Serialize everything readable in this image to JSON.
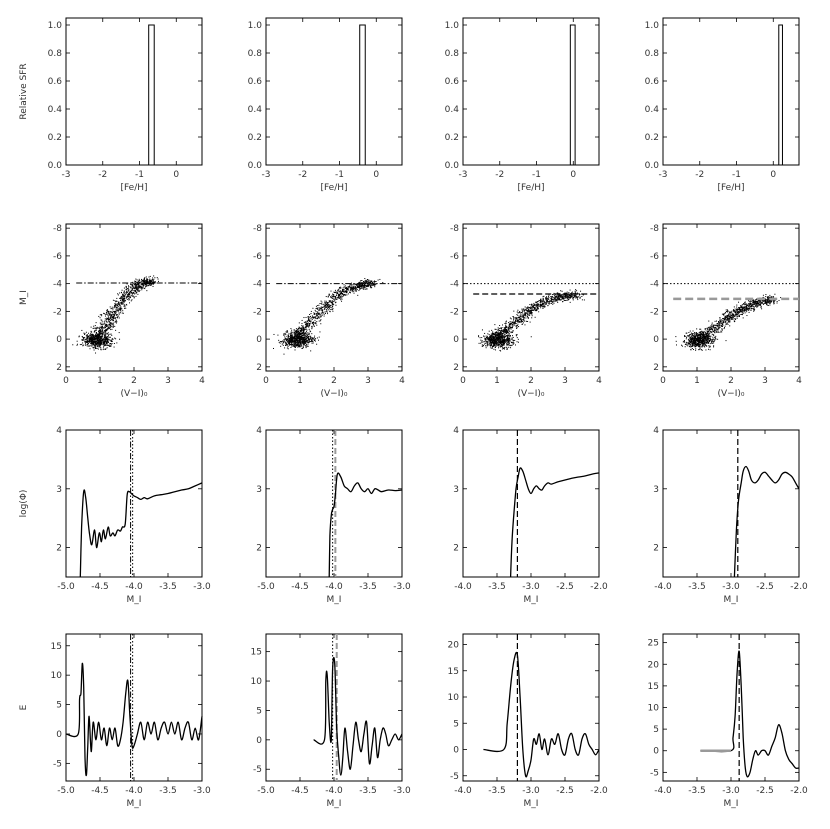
{
  "chart_data": [
    {
      "panel": "sfr-1",
      "type": "bar",
      "ylabel": "Relative SFR",
      "xlabel": "[Fe/H]",
      "xlim": [
        -3,
        0.7
      ],
      "ylim": [
        0,
        1.05
      ],
      "xticks": [
        -3,
        -2,
        -1,
        0
      ],
      "yticks": [
        0.0,
        0.2,
        0.4,
        0.6,
        0.8,
        1.0
      ],
      "bar": {
        "x0": -0.75,
        "x1": -0.6,
        "value": 1.0
      }
    },
    {
      "panel": "sfr-2",
      "type": "bar",
      "ylabel": "",
      "xlabel": "[Fe/H]",
      "xlim": [
        -3,
        0.7
      ],
      "ylim": [
        0,
        1.05
      ],
      "xticks": [
        -3,
        -2,
        -1,
        0
      ],
      "yticks": [
        0.0,
        0.2,
        0.4,
        0.6,
        0.8,
        1.0
      ],
      "bar": {
        "x0": -0.45,
        "x1": -0.3,
        "value": 1.0
      }
    },
    {
      "panel": "sfr-3",
      "type": "bar",
      "ylabel": "",
      "xlabel": "[Fe/H]",
      "xlim": [
        -3,
        0.7
      ],
      "ylim": [
        0,
        1.05
      ],
      "xticks": [
        -3,
        -2,
        -1,
        0
      ],
      "yticks": [
        0.0,
        0.2,
        0.4,
        0.6,
        0.8,
        1.0
      ],
      "bar": {
        "x0": -0.08,
        "x1": 0.05,
        "value": 1.0
      }
    },
    {
      "panel": "sfr-4",
      "type": "bar",
      "ylabel": "",
      "xlabel": "[Fe/H]",
      "xlim": [
        -3,
        0.7
      ],
      "ylim": [
        0,
        1.05
      ],
      "xticks": [
        -3,
        -2,
        -1,
        0
      ],
      "yticks": [
        0.0,
        0.2,
        0.4,
        0.6,
        0.8,
        1.0
      ],
      "bar": {
        "x0": 0.15,
        "x1": 0.25,
        "value": 1.0
      }
    },
    {
      "panel": "cmd-1",
      "type": "scatter",
      "ylabel": "M_I",
      "xlabel": "(V−I)₀",
      "xlim": [
        0,
        4
      ],
      "ylim": [
        2.3,
        -8.3
      ],
      "xticks": [
        0,
        1,
        2,
        3,
        4
      ],
      "yticks": [
        2,
        0,
        -2,
        -4,
        -6,
        -8
      ],
      "trgb": [
        -4.05
      ],
      "trgb_style": [
        "dd"
      ],
      "branch": {
        "x": [
          0.6,
          0.9,
          1.1,
          1.3,
          1.5,
          1.7,
          1.9,
          2.1,
          2.3,
          2.5
        ],
        "y": [
          0.2,
          -0.3,
          -0.9,
          -1.6,
          -2.3,
          -3.0,
          -3.5,
          -3.9,
          -4.1,
          -4.2
        ]
      }
    },
    {
      "panel": "cmd-2",
      "type": "scatter",
      "ylabel": "",
      "xlabel": "(V−I)₀",
      "xlim": [
        0,
        4
      ],
      "ylim": [
        2.3,
        -8.3
      ],
      "xticks": [
        0,
        1,
        2,
        3,
        4
      ],
      "yticks": [
        2,
        0,
        -2,
        -4,
        -6,
        -8
      ],
      "trgb": [
        -4.0
      ],
      "trgb_style": [
        "dd"
      ],
      "branch": {
        "x": [
          0.6,
          0.9,
          1.1,
          1.4,
          1.7,
          2.0,
          2.3,
          2.6,
          2.9,
          3.1
        ],
        "y": [
          0.2,
          -0.3,
          -0.8,
          -1.5,
          -2.3,
          -3.0,
          -3.5,
          -3.8,
          -4.0,
          -4.05
        ]
      }
    },
    {
      "panel": "cmd-3",
      "type": "scatter",
      "ylabel": "",
      "xlabel": "(V−I)₀",
      "xlim": [
        0,
        4
      ],
      "ylim": [
        2.3,
        -8.3
      ],
      "xticks": [
        0,
        1,
        2,
        3,
        4
      ],
      "yticks": [
        2,
        0,
        -2,
        -4,
        -6,
        -8
      ],
      "trgb": [
        -4.0,
        -3.25
      ],
      "trgb_style": [
        "dot",
        "dash"
      ],
      "branch": {
        "x": [
          0.7,
          1.0,
          1.3,
          1.6,
          1.9,
          2.2,
          2.5,
          2.8,
          3.1,
          3.4
        ],
        "y": [
          0.2,
          -0.3,
          -0.8,
          -1.4,
          -2.0,
          -2.5,
          -2.85,
          -3.05,
          -3.15,
          -3.2
        ]
      }
    },
    {
      "panel": "cmd-4",
      "type": "scatter",
      "ylabel": "",
      "xlabel": "(V−I)₀",
      "xlim": [
        0,
        4
      ],
      "ylim": [
        2.3,
        -8.3
      ],
      "xticks": [
        0,
        1,
        2,
        3,
        4
      ],
      "yticks": [
        2,
        0,
        -2,
        -4,
        -6,
        -8
      ],
      "trgb": [
        -4.0,
        -2.9
      ],
      "trgb_style": [
        "dot",
        "graydash"
      ],
      "branch": {
        "x": [
          0.9,
          1.2,
          1.5,
          1.8,
          2.1,
          2.4,
          2.7,
          3.0,
          3.2
        ],
        "y": [
          0.2,
          -0.3,
          -0.8,
          -1.4,
          -1.9,
          -2.3,
          -2.6,
          -2.8,
          -2.9
        ]
      }
    },
    {
      "panel": "lf-1",
      "type": "line",
      "ylabel": "log(Φ)",
      "xlabel": "M_I",
      "xlim": [
        -5.0,
        -3.0
      ],
      "ylim": [
        1.5,
        4.0
      ],
      "xticks": [
        -5.0,
        -4.5,
        -4.0,
        -3.5,
        -3.0
      ],
      "xticklabels": [
        "-5.0",
        "-4.5",
        "-4.0",
        "-3.5",
        "-3.0"
      ],
      "yticks": [
        2,
        3,
        4
      ],
      "vlines": [
        -4.05,
        -4.02
      ],
      "vstyles": [
        "dd",
        "dot"
      ],
      "x": [
        -4.79,
        -4.77,
        -4.74,
        -4.71,
        -4.68,
        -4.65,
        -4.62,
        -4.58,
        -4.55,
        -4.51,
        -4.48,
        -4.45,
        -4.42,
        -4.38,
        -4.35,
        -4.31,
        -4.28,
        -4.24,
        -4.2,
        -4.17,
        -4.13,
        -4.1,
        -4.07,
        -4.04,
        -4.0,
        -3.95,
        -3.9,
        -3.85,
        -3.8,
        -3.7,
        -3.6,
        -3.5,
        -3.4,
        -3.3,
        -3.2,
        -3.1,
        -3.0
      ],
      "y": [
        1.5,
        2.35,
        2.95,
        2.85,
        2.5,
        2.2,
        2.05,
        2.3,
        2.0,
        2.25,
        2.1,
        2.3,
        2.15,
        2.35,
        2.2,
        2.25,
        2.2,
        2.3,
        2.28,
        2.35,
        2.4,
        2.9,
        2.95,
        2.92,
        2.88,
        2.85,
        2.82,
        2.85,
        2.83,
        2.88,
        2.9,
        2.92,
        2.95,
        2.98,
        3.0,
        3.05,
        3.1
      ]
    },
    {
      "panel": "lf-2",
      "type": "line",
      "ylabel": "",
      "xlabel": "M_I",
      "xlim": [
        -5.0,
        -3.0
      ],
      "ylim": [
        1.5,
        4.0
      ],
      "xticks": [
        -5.0,
        -4.5,
        -4.0,
        -3.5,
        -3.0
      ],
      "xticklabels": [
        "-5.0",
        "-4.5",
        "-4.0",
        "-3.5",
        "-3.0"
      ],
      "yticks": [
        2,
        3,
        4
      ],
      "vlines": [
        -4.02,
        -3.98
      ],
      "vstyles": [
        "dot",
        "graydash"
      ],
      "x": [
        -4.07,
        -4.06,
        -4.04,
        -4.02,
        -4.0,
        -3.98,
        -3.95,
        -3.9,
        -3.85,
        -3.8,
        -3.75,
        -3.7,
        -3.65,
        -3.6,
        -3.55,
        -3.5,
        -3.45,
        -3.4,
        -3.35,
        -3.3,
        -3.2,
        -3.1,
        -3.0
      ],
      "y": [
        1.5,
        2.2,
        2.55,
        2.65,
        2.7,
        2.9,
        3.25,
        3.2,
        3.05,
        3.0,
        2.95,
        3.05,
        3.1,
        3.0,
        2.95,
        3.0,
        2.92,
        3.0,
        2.98,
        2.95,
        2.98,
        2.97,
        2.98
      ]
    },
    {
      "panel": "lf-3",
      "type": "line",
      "ylabel": "",
      "xlabel": "M_I",
      "xlim": [
        -4.0,
        -2.0
      ],
      "ylim": [
        1.5,
        4.0
      ],
      "xticks": [
        -4.0,
        -3.5,
        -3.0,
        -2.5,
        -2.0
      ],
      "xticklabels": [
        "-4.0",
        "-3.5",
        "-3.0",
        "-2.5",
        "-2.0"
      ],
      "yticks": [
        2,
        3,
        4
      ],
      "vlines": [
        -3.2
      ],
      "vstyles": [
        "dash"
      ],
      "x": [
        -3.3,
        -3.28,
        -3.25,
        -3.22,
        -3.19,
        -3.16,
        -3.12,
        -3.08,
        -3.04,
        -3.0,
        -2.96,
        -2.92,
        -2.88,
        -2.84,
        -2.8,
        -2.75,
        -2.7,
        -2.6,
        -2.5,
        -2.4,
        -2.3,
        -2.2,
        -2.1,
        -2.0
      ],
      "y": [
        1.5,
        2.1,
        2.6,
        3.0,
        3.2,
        3.35,
        3.3,
        3.15,
        3.0,
        2.92,
        3.0,
        3.05,
        3.0,
        2.98,
        3.05,
        3.1,
        3.08,
        3.12,
        3.15,
        3.18,
        3.2,
        3.22,
        3.25,
        3.27
      ]
    },
    {
      "panel": "lf-4",
      "type": "line",
      "ylabel": "",
      "xlabel": "M_I",
      "xlim": [
        -4.0,
        -2.0
      ],
      "ylim": [
        1.5,
        4.0
      ],
      "xticks": [
        -4.0,
        -3.5,
        -3.0,
        -2.5,
        -2.0
      ],
      "xticklabels": [
        "-4.0",
        "-3.5",
        "-3.0",
        "-2.5",
        "-2.0"
      ],
      "yticks": [
        2,
        3,
        4
      ],
      "vlines": [
        -2.9
      ],
      "vstyles": [
        "dash"
      ],
      "x": [
        -2.95,
        -2.92,
        -2.89,
        -2.85,
        -2.82,
        -2.78,
        -2.74,
        -2.7,
        -2.65,
        -2.6,
        -2.55,
        -2.5,
        -2.45,
        -2.4,
        -2.35,
        -2.3,
        -2.25,
        -2.2,
        -2.15,
        -2.1,
        -2.05,
        -2.0
      ],
      "y": [
        1.5,
        2.3,
        2.8,
        3.1,
        3.3,
        3.38,
        3.3,
        3.15,
        3.1,
        3.15,
        3.25,
        3.28,
        3.22,
        3.15,
        3.1,
        3.15,
        3.25,
        3.28,
        3.25,
        3.2,
        3.1,
        3.0
      ]
    },
    {
      "panel": "edge-1",
      "type": "line",
      "ylabel": "E",
      "xlabel": "M_I",
      "xlim": [
        -5.0,
        -3.0
      ],
      "ylim": [
        -8,
        17
      ],
      "xticks": [
        -5.0,
        -4.5,
        -4.0,
        -3.5,
        -3.0
      ],
      "xticklabels": [
        "-5.0",
        "-4.5",
        "-4.0",
        "-3.5",
        "-3.0"
      ],
      "yticks": [
        -5,
        0,
        5,
        10,
        15
      ],
      "vlines": [
        -4.05,
        -4.02
      ],
      "vstyles": [
        "dd",
        "dot"
      ],
      "x": [
        -5.0,
        -4.82,
        -4.8,
        -4.78,
        -4.76,
        -4.74,
        -4.72,
        -4.7,
        -4.68,
        -4.66,
        -4.63,
        -4.6,
        -4.56,
        -4.52,
        -4.48,
        -4.44,
        -4.4,
        -4.36,
        -4.32,
        -4.28,
        -4.24,
        -4.2,
        -4.16,
        -4.12,
        -4.09,
        -4.06,
        -4.03,
        -4.0,
        -3.95,
        -3.9,
        -3.85,
        -3.8,
        -3.75,
        -3.7,
        -3.65,
        -3.6,
        -3.55,
        -3.5,
        -3.45,
        -3.4,
        -3.35,
        -3.3,
        -3.25,
        -3.2,
        -3.15,
        -3.1,
        -3.05,
        -3.0
      ],
      "y": [
        0,
        0,
        6,
        7,
        12,
        8,
        -4,
        -7,
        -2,
        3,
        -3,
        2,
        -1,
        2,
        -1,
        1,
        -2,
        1,
        -1,
        1,
        -2,
        -1,
        2,
        7,
        9,
        3,
        -2,
        -2,
        0,
        2,
        -1,
        2,
        0,
        2,
        -1,
        1,
        2,
        0,
        2,
        0,
        2,
        -1,
        1,
        2,
        -1,
        1,
        -1,
        3
      ]
    },
    {
      "panel": "edge-2",
      "type": "line",
      "ylabel": "",
      "xlabel": "M_I",
      "xlim": [
        -5.0,
        -3.0
      ],
      "ylim": [
        -7,
        18
      ],
      "xticks": [
        -5.0,
        -4.5,
        -4.0,
        -3.5,
        -3.0
      ],
      "xticklabels": [
        "-5.0",
        "-4.5",
        "-4.0",
        "-3.5",
        "-3.0"
      ],
      "yticks": [
        -5,
        0,
        5,
        10,
        15
      ],
      "vlines": [
        -4.02,
        -3.96
      ],
      "vstyles": [
        "dot",
        "graydash"
      ],
      "x": [
        -4.3,
        -4.14,
        -4.12,
        -4.1,
        -4.07,
        -4.04,
        -4.02,
        -3.99,
        -3.96,
        -3.93,
        -3.9,
        -3.87,
        -3.84,
        -3.8,
        -3.76,
        -3.72,
        -3.68,
        -3.64,
        -3.6,
        -3.56,
        -3.52,
        -3.48,
        -3.44,
        -3.4,
        -3.36,
        -3.32,
        -3.28,
        -3.24,
        -3.2,
        -3.15,
        -3.1,
        -3.05,
        -3.0
      ],
      "y": [
        0,
        0,
        10,
        11,
        3,
        0,
        12,
        13,
        2,
        -3,
        -6,
        -3,
        2,
        -2,
        -5,
        -1,
        3,
        0,
        -2,
        1,
        3,
        -4,
        -1,
        2,
        -3,
        0,
        2,
        1,
        -1,
        0,
        1,
        0,
        1
      ]
    },
    {
      "panel": "edge-3",
      "type": "line",
      "ylabel": "",
      "xlabel": "M_I",
      "xlim": [
        -4.0,
        -2.0
      ],
      "ylim": [
        -6,
        22
      ],
      "xticks": [
        -4.0,
        -3.5,
        -3.0,
        -2.5,
        -2.0
      ],
      "xticklabels": [
        "-4.0",
        "-3.5",
        "-3.0",
        "-2.5",
        "-2.0"
      ],
      "yticks": [
        -5,
        0,
        5,
        10,
        15,
        20
      ],
      "vlines": [
        -3.2
      ],
      "vstyles": [
        "dash"
      ],
      "x": [
        -3.7,
        -3.4,
        -3.35,
        -3.3,
        -3.25,
        -3.2,
        -3.16,
        -3.12,
        -3.08,
        -3.04,
        -3.0,
        -2.96,
        -2.92,
        -2.88,
        -2.84,
        -2.8,
        -2.75,
        -2.7,
        -2.65,
        -2.6,
        -2.55,
        -2.5,
        -2.45,
        -2.4,
        -2.35,
        -2.3,
        -2.25,
        -2.2,
        -2.15,
        -2.1,
        -2.05,
        -2.0
      ],
      "y": [
        0,
        0,
        5,
        12,
        17,
        18,
        10,
        0,
        -5,
        -4,
        -2,
        2,
        1,
        3,
        0,
        2,
        -1,
        2,
        1,
        3,
        0,
        -1,
        2,
        3,
        0,
        -1,
        2,
        3,
        1,
        0,
        -1,
        0
      ]
    },
    {
      "panel": "edge-4",
      "type": "line",
      "ylabel": "",
      "xlabel": "M_I",
      "xlim": [
        -4.0,
        -2.0
      ],
      "ylim": [
        -7,
        27
      ],
      "xticks": [
        -4.0,
        -3.5,
        -3.0,
        -2.5,
        -2.0
      ],
      "xticklabels": [
        "-4.0",
        "-3.5",
        "-3.0",
        "-2.5",
        "-2.0"
      ],
      "yticks": [
        -5,
        0,
        5,
        10,
        15,
        20,
        25
      ],
      "vlines": [
        -2.88
      ],
      "vstyles": [
        "dash"
      ],
      "x": [
        -3.45,
        -3.0,
        -2.97,
        -2.94,
        -2.91,
        -2.88,
        -2.85,
        -2.82,
        -2.79,
        -2.76,
        -2.72,
        -2.68,
        -2.64,
        -2.6,
        -2.55,
        -2.5,
        -2.45,
        -2.4,
        -2.35,
        -2.3,
        -2.25,
        -2.2,
        -2.15,
        -2.1,
        -2.05,
        -2.0
      ],
      "y": [
        0,
        0,
        3,
        8,
        18,
        23,
        15,
        3,
        -4,
        -6,
        -5,
        -2,
        0,
        -1,
        0,
        0,
        -1,
        1,
        3,
        6,
        4,
        0,
        -2,
        -3,
        -4,
        -4
      ]
    }
  ]
}
